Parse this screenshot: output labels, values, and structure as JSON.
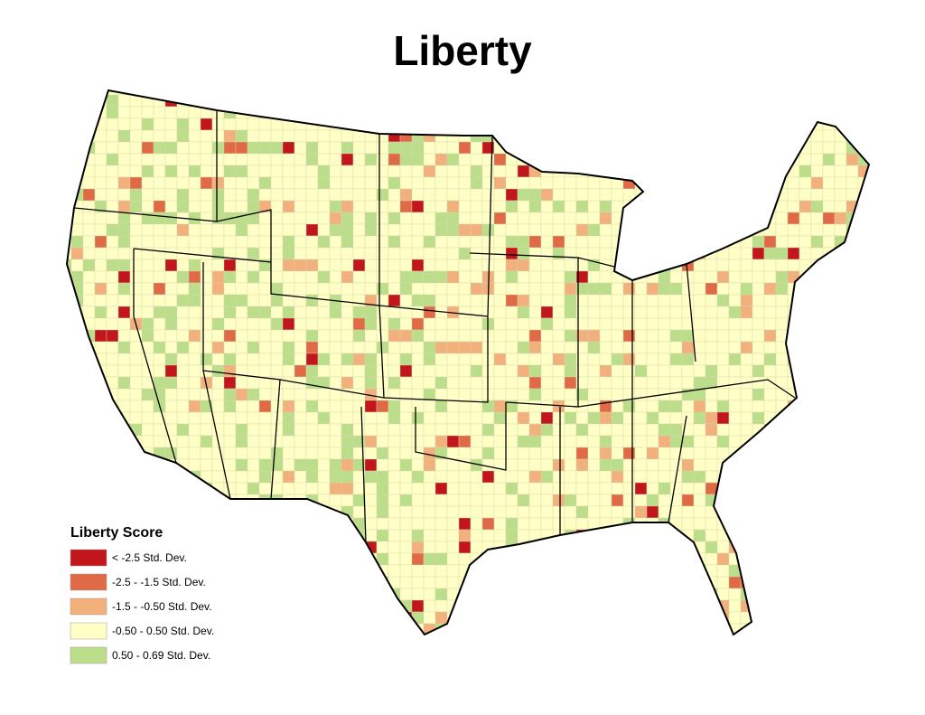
{
  "title": "Liberty",
  "legend": {
    "title": "Liberty Score",
    "items": [
      {
        "label": "< -2.5 Std. Dev.",
        "color": "#c0161c"
      },
      {
        "label": "-2.5 - -1.5 Std. Dev.",
        "color": "#df6a45"
      },
      {
        "label": "-1.5 - -0.50 Std. Dev.",
        "color": "#f2b07d"
      },
      {
        "label": "-0.50 - 0.50 Std. Dev.",
        "color": "#ffffc6"
      },
      {
        "label": "0.50 - 0.69 Std. Dev.",
        "color": "#bcdd8a"
      }
    ]
  }
}
